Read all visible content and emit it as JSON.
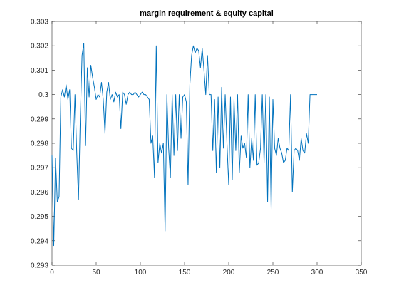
{
  "chart_data": {
    "type": "line",
    "title": "margin requirement & equity capital",
    "x": [
      0,
      2,
      4,
      6,
      8,
      10,
      12,
      14,
      16,
      18,
      20,
      22,
      24,
      26,
      28,
      30,
      32,
      34,
      36,
      38,
      40,
      42,
      44,
      46,
      48,
      50,
      52,
      54,
      56,
      58,
      60,
      62,
      64,
      66,
      68,
      70,
      72,
      74,
      76,
      78,
      80,
      82,
      84,
      86,
      88,
      90,
      92,
      94,
      96,
      98,
      100,
      102,
      104,
      106,
      108,
      110,
      112,
      114,
      116,
      118,
      120,
      122,
      124,
      126,
      128,
      130,
      132,
      134,
      136,
      138,
      140,
      142,
      144,
      146,
      148,
      150,
      152,
      154,
      156,
      158,
      160,
      162,
      164,
      166,
      168,
      170,
      172,
      174,
      176,
      178,
      180,
      182,
      184,
      186,
      188,
      190,
      192,
      194,
      196,
      198,
      200,
      202,
      204,
      206,
      208,
      210,
      212,
      214,
      216,
      218,
      220,
      222,
      224,
      226,
      228,
      230,
      232,
      234,
      236,
      238,
      240,
      242,
      244,
      246,
      248,
      250,
      252,
      254,
      256,
      258,
      260,
      262,
      264,
      266,
      268,
      270,
      272,
      274,
      276,
      278,
      280,
      282,
      284,
      286,
      288,
      290,
      292,
      294,
      296,
      298,
      300
    ],
    "series": [
      {
        "name": "margin requirement",
        "color": "#0072bd",
        "values": [
          0.2975,
          0.2938,
          0.2974,
          0.2956,
          0.2958,
          0.2999,
          0.3002,
          0.2999,
          0.3004,
          0.2998,
          0.3002,
          0.2978,
          0.2977,
          0.3,
          0.2976,
          0.2957,
          0.299,
          0.3016,
          0.3021,
          0.2979,
          0.3011,
          0.2999,
          0.3012,
          0.3007,
          0.3003,
          0.2998,
          0.3,
          0.2999,
          0.3005,
          0.2998,
          0.2984,
          0.3001,
          0.3005,
          0.2998,
          0.3,
          0.2997,
          0.3001,
          0.2999,
          0.3,
          0.2986,
          0.3001,
          0.3,
          0.2996,
          0.3,
          0.3001,
          0.3,
          0.3,
          0.3001,
          0.3,
          0.2999,
          0.3,
          0.3001,
          0.3,
          0.3,
          0.2999,
          0.2998,
          0.298,
          0.2983,
          0.2966,
          0.302,
          0.2972,
          0.298,
          0.2976,
          0.298,
          0.2944,
          0.3,
          0.2978,
          0.2966,
          0.3,
          0.2975,
          0.3,
          0.2977,
          0.3,
          0.2982,
          0.2999,
          0.3,
          0.2997,
          0.2963,
          0.3004,
          0.3016,
          0.302,
          0.3017,
          0.3019,
          0.3018,
          0.3011,
          0.3019,
          0.301,
          0.3,
          0.3016,
          0.3,
          0.3,
          0.2977,
          0.2998,
          0.2968,
          0.2999,
          0.297,
          0.3003,
          0.2978,
          0.3,
          0.298,
          0.2963,
          0.2999,
          0.2965,
          0.2998,
          0.2977,
          0.3,
          0.2968,
          0.2983,
          0.2978,
          0.298,
          0.2974,
          0.3,
          0.297,
          0.2982,
          0.2973,
          0.3,
          0.2971,
          0.2972,
          0.2978,
          0.3,
          0.2972,
          0.3,
          0.2956,
          0.2999,
          0.2953,
          0.2998,
          0.2978,
          0.2975,
          0.2982,
          0.2978,
          0.2976,
          0.2972,
          0.2973,
          0.2978,
          0.2977,
          0.3,
          0.296,
          0.2977,
          0.2978,
          0.2977,
          0.2973,
          0.2982,
          0.2977,
          0.2976,
          0.2984,
          0.298,
          0.3,
          0.3,
          0.3,
          0.3,
          0.3
        ]
      }
    ],
    "xlim": [
      0,
      350
    ],
    "xticks": [
      0,
      50,
      100,
      150,
      200,
      250,
      300,
      350
    ],
    "ylim": [
      0.293,
      0.303
    ],
    "yticks": [
      0.293,
      0.294,
      0.295,
      0.296,
      0.297,
      0.298,
      0.299,
      0.3,
      0.301,
      0.302,
      0.303
    ]
  }
}
